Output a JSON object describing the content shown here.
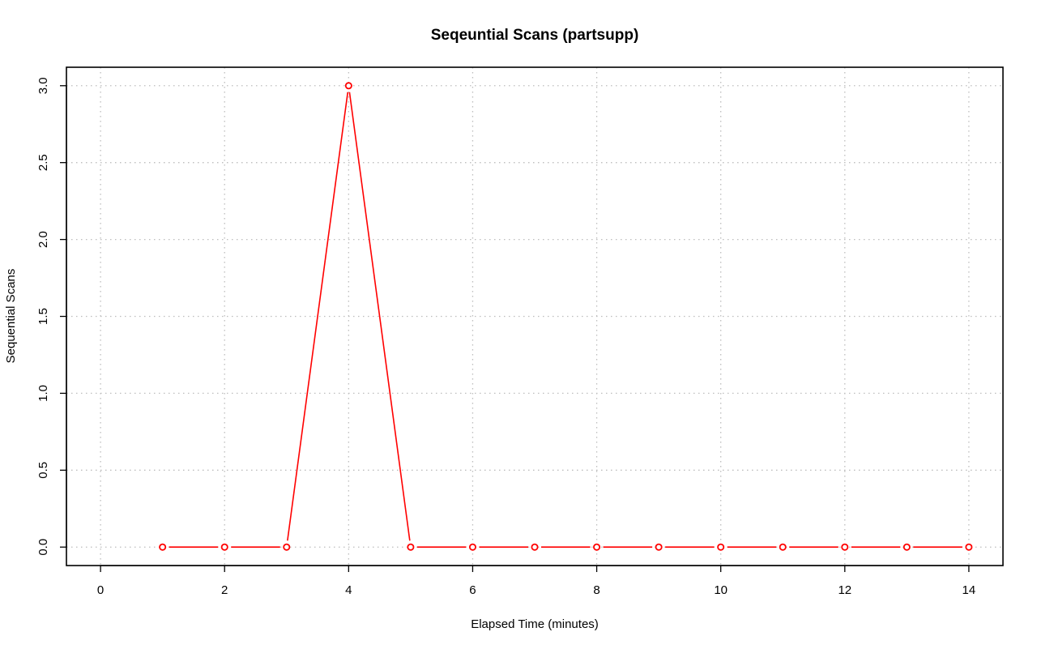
{
  "chart_data": {
    "type": "line",
    "title": "Seqeuntial Scans (partsupp)",
    "xlabel": "Elapsed Time (minutes)",
    "ylabel": "Sequential Scans",
    "xlim": [
      -0.55,
      14.55
    ],
    "ylim": [
      -0.12,
      3.12
    ],
    "xticks": [
      0,
      2,
      4,
      6,
      8,
      10,
      12,
      14
    ],
    "xtick_labels": [
      "0",
      "2",
      "4",
      "6",
      "8",
      "10",
      "12",
      "14"
    ],
    "yticks": [
      0,
      0.5,
      1,
      1.5,
      2,
      2.5,
      3
    ],
    "ytick_labels": [
      "0.0",
      "0.5",
      "1.0",
      "1.5",
      "2.0",
      "2.5",
      "3.0"
    ],
    "grid": true,
    "series": [
      {
        "color": "#ff0000",
        "marker": "open-circle",
        "x": [
          1,
          2,
          3,
          4,
          5,
          6,
          7,
          8,
          9,
          10,
          11,
          12,
          13,
          14
        ],
        "y": [
          0,
          0,
          0,
          3,
          0,
          0,
          0,
          0,
          0,
          0,
          0,
          0,
          0,
          0
        ]
      }
    ]
  }
}
